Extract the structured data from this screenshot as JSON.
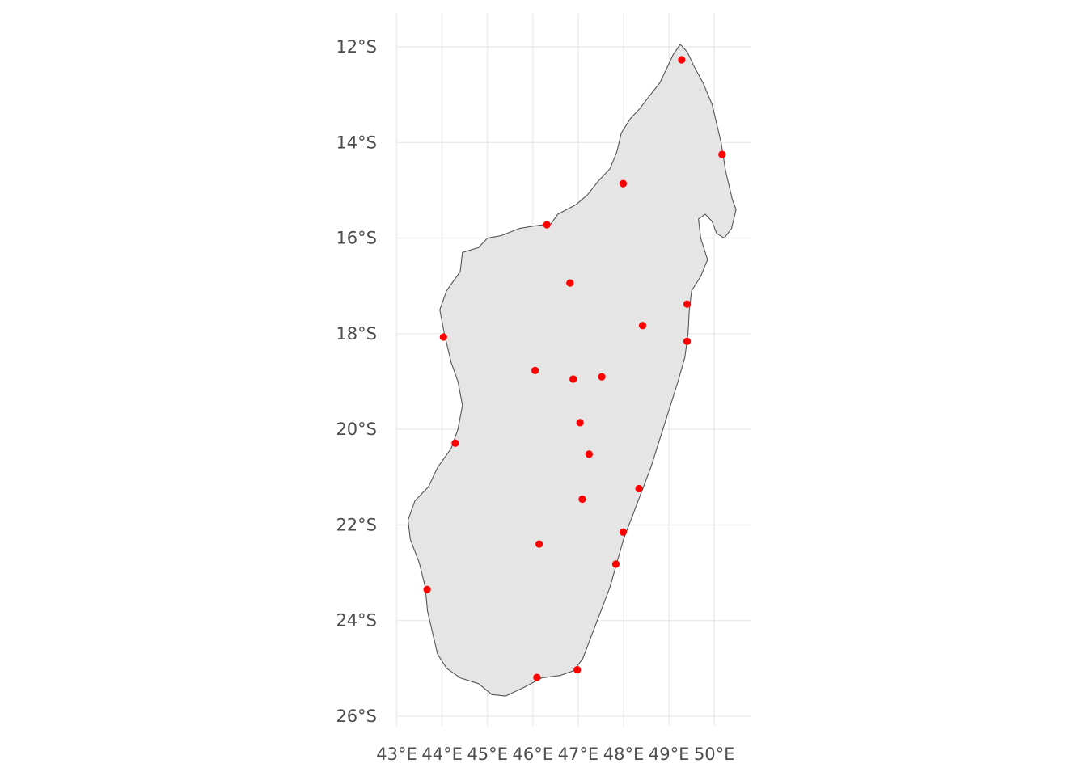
{
  "chart_data": {
    "type": "scatter",
    "region": "Madagascar",
    "title": "",
    "xlabel": "",
    "ylabel": "",
    "xlim": [
      43,
      50.8
    ],
    "ylim": [
      -26.2,
      -11.3
    ],
    "grid": true,
    "legend": "none",
    "x_ticks": [
      {
        "value": 43,
        "label": "43°E"
      },
      {
        "value": 44,
        "label": "44°E"
      },
      {
        "value": 45,
        "label": "45°E"
      },
      {
        "value": 46,
        "label": "46°E"
      },
      {
        "value": 47,
        "label": "47°E"
      },
      {
        "value": 48,
        "label": "48°E"
      },
      {
        "value": 49,
        "label": "49°E"
      },
      {
        "value": 50,
        "label": "50°E"
      }
    ],
    "y_ticks": [
      {
        "value": -12,
        "label": "12°S"
      },
      {
        "value": -14,
        "label": "14°S"
      },
      {
        "value": -16,
        "label": "16°S"
      },
      {
        "value": -18,
        "label": "18°S"
      },
      {
        "value": -20,
        "label": "20°S"
      },
      {
        "value": -22,
        "label": "22°S"
      },
      {
        "value": -24,
        "label": "24°S"
      },
      {
        "value": -26,
        "label": "26°S"
      }
    ],
    "points": [
      {
        "lon": 49.28,
        "lat": -12.27
      },
      {
        "lon": 50.17,
        "lat": -14.25
      },
      {
        "lon": 47.99,
        "lat": -14.86
      },
      {
        "lon": 46.31,
        "lat": -15.72
      },
      {
        "lon": 46.82,
        "lat": -16.94
      },
      {
        "lon": 49.4,
        "lat": -17.38
      },
      {
        "lon": 48.42,
        "lat": -17.83
      },
      {
        "lon": 44.03,
        "lat": -18.07
      },
      {
        "lon": 49.4,
        "lat": -18.16
      },
      {
        "lon": 46.05,
        "lat": -18.77
      },
      {
        "lon": 47.52,
        "lat": -18.9
      },
      {
        "lon": 46.89,
        "lat": -18.95
      },
      {
        "lon": 47.04,
        "lat": -19.86
      },
      {
        "lon": 44.29,
        "lat": -20.29
      },
      {
        "lon": 47.24,
        "lat": -20.52
      },
      {
        "lon": 48.34,
        "lat": -21.24
      },
      {
        "lon": 47.09,
        "lat": -21.46
      },
      {
        "lon": 47.99,
        "lat": -22.15
      },
      {
        "lon": 46.14,
        "lat": -22.4
      },
      {
        "lon": 47.83,
        "lat": -22.82
      },
      {
        "lon": 43.67,
        "lat": -23.35
      },
      {
        "lon": 46.98,
        "lat": -25.03
      },
      {
        "lon": 46.09,
        "lat": -25.19
      }
    ],
    "point_color": "#ff0000",
    "land_fill": "#e5e5e5",
    "land_stroke": "#555555",
    "grid_color": "#ebebeb",
    "tick_color": "#4d4d4d",
    "outline": [
      [
        49.25,
        -11.95
      ],
      [
        49.4,
        -12.1
      ],
      [
        49.55,
        -12.4
      ],
      [
        49.75,
        -12.75
      ],
      [
        49.95,
        -13.2
      ],
      [
        50.05,
        -13.6
      ],
      [
        50.15,
        -14.0
      ],
      [
        50.25,
        -14.6
      ],
      [
        50.4,
        -15.2
      ],
      [
        50.48,
        -15.4
      ],
      [
        50.38,
        -15.8
      ],
      [
        50.22,
        -16.0
      ],
      [
        50.05,
        -15.9
      ],
      [
        49.95,
        -15.65
      ],
      [
        49.8,
        -15.5
      ],
      [
        49.65,
        -15.6
      ],
      [
        49.7,
        -16.0
      ],
      [
        49.85,
        -16.45
      ],
      [
        49.7,
        -16.8
      ],
      [
        49.5,
        -17.1
      ],
      [
        49.45,
        -17.5
      ],
      [
        49.42,
        -18.0
      ],
      [
        49.35,
        -18.5
      ],
      [
        49.2,
        -19.0
      ],
      [
        49.0,
        -19.6
      ],
      [
        48.8,
        -20.2
      ],
      [
        48.6,
        -20.8
      ],
      [
        48.4,
        -21.3
      ],
      [
        48.2,
        -21.8
      ],
      [
        48.0,
        -22.3
      ],
      [
        47.85,
        -22.8
      ],
      [
        47.7,
        -23.3
      ],
      [
        47.5,
        -23.8
      ],
      [
        47.3,
        -24.3
      ],
      [
        47.1,
        -24.8
      ],
      [
        46.9,
        -25.05
      ],
      [
        46.6,
        -25.15
      ],
      [
        46.2,
        -25.2
      ],
      [
        45.8,
        -25.4
      ],
      [
        45.4,
        -25.58
      ],
      [
        45.1,
        -25.55
      ],
      [
        44.8,
        -25.32
      ],
      [
        44.4,
        -25.2
      ],
      [
        44.1,
        -25.0
      ],
      [
        43.9,
        -24.7
      ],
      [
        43.8,
        -24.3
      ],
      [
        43.68,
        -23.8
      ],
      [
        43.63,
        -23.3
      ],
      [
        43.5,
        -22.8
      ],
      [
        43.3,
        -22.3
      ],
      [
        43.25,
        -21.9
      ],
      [
        43.4,
        -21.5
      ],
      [
        43.7,
        -21.2
      ],
      [
        43.9,
        -20.8
      ],
      [
        44.2,
        -20.4
      ],
      [
        44.35,
        -20.0
      ],
      [
        44.45,
        -19.5
      ],
      [
        44.35,
        -19.0
      ],
      [
        44.2,
        -18.6
      ],
      [
        44.05,
        -18.0
      ],
      [
        43.95,
        -17.5
      ],
      [
        44.1,
        -17.1
      ],
      [
        44.4,
        -16.7
      ],
      [
        44.45,
        -16.3
      ],
      [
        44.8,
        -16.2
      ],
      [
        45.0,
        -16.0
      ],
      [
        45.3,
        -15.95
      ],
      [
        45.7,
        -15.8
      ],
      [
        46.0,
        -15.75
      ],
      [
        46.4,
        -15.7
      ],
      [
        46.55,
        -15.5
      ],
      [
        46.95,
        -15.3
      ],
      [
        47.2,
        -15.1
      ],
      [
        47.45,
        -14.8
      ],
      [
        47.7,
        -14.55
      ],
      [
        47.85,
        -14.2
      ],
      [
        47.95,
        -13.8
      ],
      [
        48.15,
        -13.5
      ],
      [
        48.35,
        -13.3
      ],
      [
        48.55,
        -13.05
      ],
      [
        48.8,
        -12.75
      ],
      [
        48.95,
        -12.45
      ],
      [
        49.1,
        -12.15
      ],
      [
        49.25,
        -11.95
      ]
    ]
  }
}
